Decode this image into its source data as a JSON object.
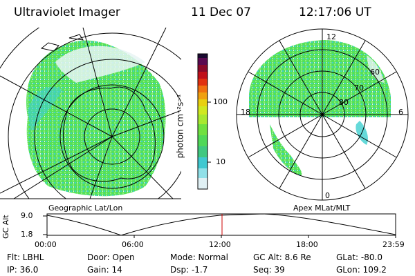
{
  "header": {
    "title": "Ultraviolet Imager",
    "date": "11 Dec 07",
    "time": "12:17:06 UT"
  },
  "left_panel": {
    "label": "Geographic Lat/Lon"
  },
  "right_panel": {
    "label": "Apex MLat/MLT",
    "mlt_labels": {
      "top": "12",
      "left": "18",
      "right": "6",
      "bottom": "0"
    },
    "lat_labels": [
      "60",
      "70",
      "80"
    ]
  },
  "colorbar": {
    "label": "photon cm⁻²s⁻¹",
    "ticks": [
      "100",
      "10"
    ]
  },
  "orbit": {
    "ylabel": "GC Alt",
    "y_ticks": [
      "9.0",
      "1.8"
    ],
    "x_ticks": [
      "00:00",
      "06:00",
      "12:00",
      "18:00",
      "23:59"
    ]
  },
  "footer": {
    "filter": "Flt: LBHL",
    "ip": "IP: 36.0",
    "door": "Door: Open",
    "gain": "Gain: 14",
    "mode": "Mode: Normal",
    "dsp": "Dsp:   -1.7",
    "gc_alt": "GC Alt: 8.6 Re",
    "seq": "Seq: 39",
    "glat": "GLat: -80.0",
    "glon": "GLon: 109.2"
  },
  "colors": {
    "aurora_green": "#5ce65c",
    "aurora_cyan": "#40d0d0",
    "marker_red": "#cc0000"
  }
}
